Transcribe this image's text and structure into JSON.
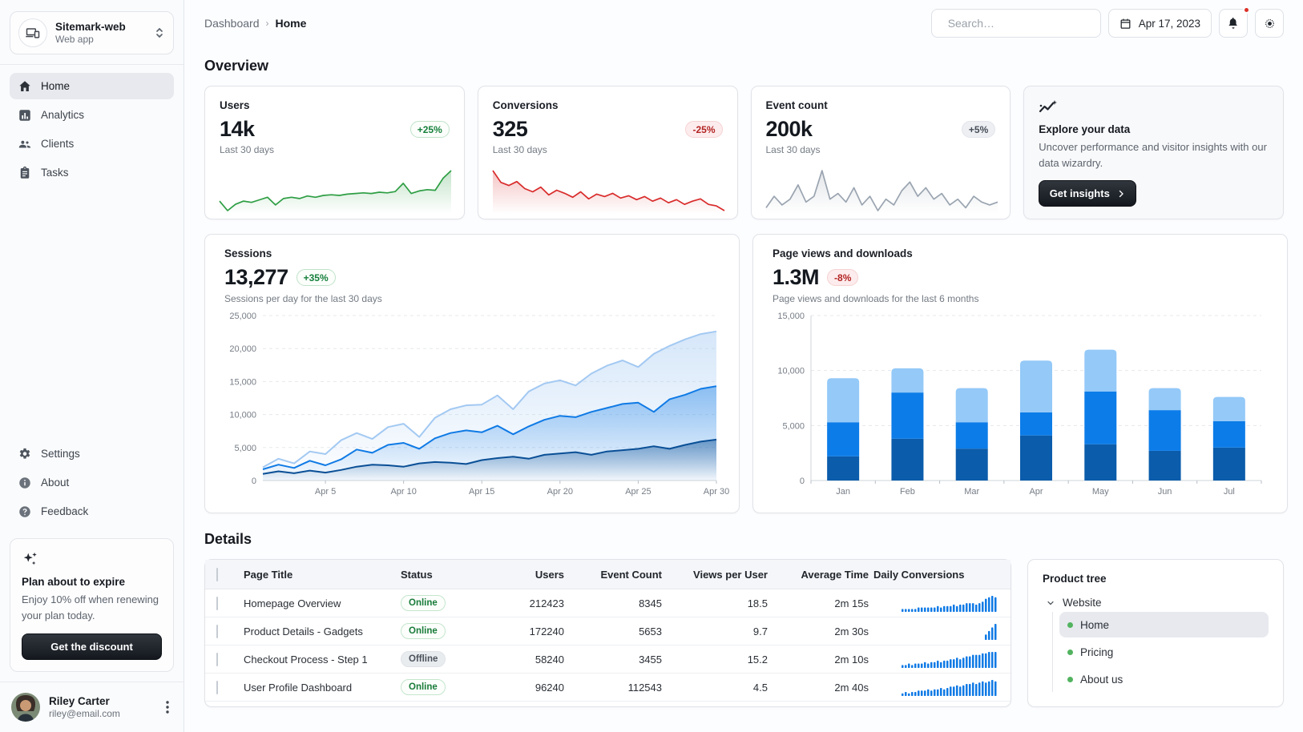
{
  "sidebar": {
    "workspace": {
      "name": "Sitemark-web",
      "type": "Web app"
    },
    "nav_top": [
      {
        "label": "Home",
        "icon": "home-icon",
        "selected": true
      },
      {
        "label": "Analytics",
        "icon": "analytics-icon",
        "selected": false
      },
      {
        "label": "Clients",
        "icon": "clients-icon",
        "selected": false
      },
      {
        "label": "Tasks",
        "icon": "tasks-icon",
        "selected": false
      }
    ],
    "nav_bottom": [
      {
        "label": "Settings",
        "icon": "gear-icon"
      },
      {
        "label": "About",
        "icon": "info-icon"
      },
      {
        "label": "Feedback",
        "icon": "help-icon"
      }
    ],
    "promo": {
      "title": "Plan about to expire",
      "body": "Enjoy 10% off when renewing your plan today.",
      "button": "Get the discount"
    },
    "user": {
      "name": "Riley Carter",
      "email": "riley@email.com"
    }
  },
  "topbar": {
    "breadcrumb": {
      "parent": "Dashboard",
      "current": "Home"
    },
    "search_placeholder": "Search…",
    "date": "Apr 17, 2023"
  },
  "overview": {
    "heading": "Overview",
    "stats": [
      {
        "label": "Users",
        "value": "14k",
        "chip": "+25%",
        "trend": "up",
        "caption": "Last 30 days"
      },
      {
        "label": "Conversions",
        "value": "325",
        "chip": "-25%",
        "trend": "down",
        "caption": "Last 30 days"
      },
      {
        "label": "Event count",
        "value": "200k",
        "chip": "+5%",
        "trend": "neutral",
        "caption": "Last 30 days"
      }
    ],
    "explore": {
      "title": "Explore your data",
      "body": "Uncover performance and visitor insights with our data wizardry.",
      "button": "Get insights"
    }
  },
  "sessions_card": {
    "title": "Sessions",
    "value": "13,277",
    "chip": "+35%",
    "caption": "Sessions per day for the last 30 days"
  },
  "pageviews_card": {
    "title": "Page views and downloads",
    "value": "1.3M",
    "chip": "-8%",
    "caption": "Page views and downloads for the last 6 months"
  },
  "details": {
    "heading": "Details",
    "table": {
      "columns": [
        "Page Title",
        "Status",
        "Users",
        "Event Count",
        "Views per User",
        "Average Time",
        "Daily Conversions"
      ],
      "rows": [
        {
          "title": "Homepage Overview",
          "status": "Online",
          "users": "212423",
          "event_count": "8345",
          "views_per_user": "18.5",
          "avg_time": "2m 15s"
        },
        {
          "title": "Product Details - Gadgets",
          "status": "Online",
          "users": "172240",
          "event_count": "5653",
          "views_per_user": "9.7",
          "avg_time": "2m 30s"
        },
        {
          "title": "Checkout Process - Step 1",
          "status": "Offline",
          "users": "58240",
          "event_count": "3455",
          "views_per_user": "15.2",
          "avg_time": "2m 10s"
        },
        {
          "title": "User Profile Dashboard",
          "status": "Online",
          "users": "96240",
          "event_count": "112543",
          "views_per_user": "4.5",
          "avg_time": "2m 40s"
        }
      ]
    }
  },
  "product_tree": {
    "heading": "Product tree",
    "root": "Website",
    "children": [
      "Home",
      "Pricing",
      "About us"
    ],
    "selected": "Home"
  },
  "colors": {
    "blue_dark": "#0b5cab",
    "blue_mid": "#0c7ce8",
    "blue_light": "#94c9f8",
    "green": "#2e9e44",
    "red": "#d92b2b",
    "gray_line": "#9aa4b0",
    "spark_bar_blue": "#0f7ae5"
  },
  "chart_data": [
    {
      "id": "users-spark",
      "type": "area",
      "title": "Users sparkline (last 30 days)",
      "color": "#2e9e44",
      "values": [
        4,
        2.5,
        3.5,
        4,
        3.8,
        4.2,
        4.6,
        3.4,
        4.4,
        4.6,
        4.4,
        4.8,
        4.6,
        4.9,
        5,
        4.9,
        5.1,
        5.2,
        5.3,
        5.2,
        5.4,
        5.3,
        5.5,
        6.8,
        5.2,
        5.6,
        5.8,
        5.7,
        7.6,
        8.8
      ]
    },
    {
      "id": "conversions-spark",
      "type": "area",
      "title": "Conversions sparkline (last 30 days)",
      "color": "#d92b2b",
      "values": [
        9.5,
        8,
        7.6,
        8.1,
        7.2,
        6.8,
        7.4,
        6.4,
        7,
        6.6,
        6.1,
        6.8,
        5.9,
        6.5,
        6.2,
        6.6,
        6,
        6.3,
        5.8,
        6.2,
        5.6,
        6,
        5.4,
        5.8,
        5.2,
        5.6,
        5.9,
        5.2,
        5,
        4.4
      ]
    },
    {
      "id": "events-spark",
      "type": "area",
      "title": "Event count sparkline (last 30 days)",
      "color": "#9aa4b0",
      "values": [
        5,
        5.4,
        5.1,
        5.3,
        5.8,
        5.2,
        5.4,
        6.3,
        5.3,
        5.5,
        5.2,
        5.7,
        5.1,
        5.4,
        4.9,
        5.3,
        5.1,
        5.6,
        5.9,
        5.4,
        5.7,
        5.3,
        5.5,
        5.1,
        5.3,
        5,
        5.4,
        5.2,
        5.1,
        5.2
      ]
    },
    {
      "id": "sessions-chart",
      "type": "line",
      "title": "Sessions",
      "ylim": [
        0,
        25000
      ],
      "yticks": [
        0,
        5000,
        10000,
        15000,
        20000,
        25000
      ],
      "xtick_labels": [
        "Apr 5",
        "Apr 10",
        "Apr 15",
        "Apr 20",
        "Apr 25",
        "Apr 30"
      ],
      "xtick_indices": [
        4,
        9,
        14,
        19,
        24,
        29
      ],
      "grid": true,
      "legend": "none",
      "series": [
        {
          "name": "series-dark",
          "color": "#0a4f96",
          "values": [
            1000,
            1400,
            1100,
            1500,
            1200,
            1600,
            2100,
            2400,
            2300,
            2100,
            2600,
            2800,
            2700,
            2500,
            3100,
            3400,
            3600,
            3300,
            3900,
            4100,
            4300,
            3900,
            4400,
            4600,
            4800,
            5200,
            4800,
            5400,
            5900,
            6200
          ]
        },
        {
          "name": "series-mid",
          "color": "#0f7ae5",
          "values": [
            1700,
            2400,
            1900,
            3000,
            2300,
            3200,
            4700,
            4200,
            5400,
            5700,
            4800,
            6400,
            7200,
            7600,
            7300,
            8300,
            7000,
            8200,
            9200,
            9800,
            9600,
            10400,
            11000,
            11600,
            11800,
            10400,
            12300,
            13000,
            13900,
            14300
          ]
        },
        {
          "name": "series-light",
          "color": "#a3c9f2",
          "values": [
            2000,
            3300,
            2600,
            4400,
            4000,
            6100,
            7200,
            6300,
            8100,
            8600,
            6600,
            9500,
            10800,
            11400,
            11500,
            12900,
            10800,
            13500,
            14700,
            15200,
            14400,
            16200,
            17400,
            18200,
            17200,
            19200,
            20400,
            21400,
            22200,
            22600
          ]
        }
      ]
    },
    {
      "id": "pageviews-chart",
      "type": "bar",
      "title": "Page views and downloads",
      "ylim": [
        0,
        15000
      ],
      "yticks": [
        0,
        5000,
        10000,
        15000
      ],
      "categories": [
        "Jan",
        "Feb",
        "Mar",
        "Apr",
        "May",
        "Jun",
        "Jul"
      ],
      "grid": true,
      "legend": "none",
      "stacked": true,
      "series": [
        {
          "name": "segment-dark",
          "color": "#0b5cab",
          "values": [
            2200,
            3800,
            2900,
            4100,
            3300,
            2700,
            3000
          ]
        },
        {
          "name": "segment-mid",
          "color": "#0c7ce8",
          "values": [
            3100,
            4200,
            2400,
            2100,
            4800,
            3700,
            2400
          ]
        },
        {
          "name": "segment-light",
          "color": "#94c9f8",
          "values": [
            4000,
            2200,
            3100,
            4700,
            3800,
            2000,
            2200
          ]
        }
      ]
    },
    {
      "id": "row-sparks",
      "type": "bar-sparkline",
      "title": "Daily conversions per table row",
      "color": "#0f7ae5",
      "rows": [
        [
          2,
          2,
          2,
          2,
          2,
          3,
          3,
          3,
          3,
          3,
          3,
          4,
          3,
          4,
          4,
          4,
          5,
          4,
          5,
          5,
          6,
          6,
          6,
          5,
          6,
          7,
          9,
          10,
          11,
          10
        ],
        [
          0,
          0,
          0,
          0,
          0,
          0,
          0,
          0,
          0,
          0,
          0,
          0,
          0,
          0,
          0,
          0,
          0,
          0,
          0,
          0,
          0,
          0,
          0,
          0,
          0,
          0,
          3,
          5,
          7,
          9
        ],
        [
          2,
          2,
          3,
          2,
          3,
          3,
          3,
          4,
          3,
          4,
          4,
          5,
          4,
          5,
          5,
          6,
          6,
          7,
          6,
          7,
          8,
          8,
          9,
          9,
          9,
          10,
          10,
          11,
          11,
          11
        ],
        [
          2,
          3,
          2,
          3,
          3,
          4,
          4,
          4,
          5,
          4,
          5,
          5,
          6,
          5,
          6,
          7,
          7,
          8,
          7,
          8,
          9,
          9,
          10,
          9,
          10,
          11,
          10,
          11,
          12,
          11
        ]
      ]
    }
  ]
}
